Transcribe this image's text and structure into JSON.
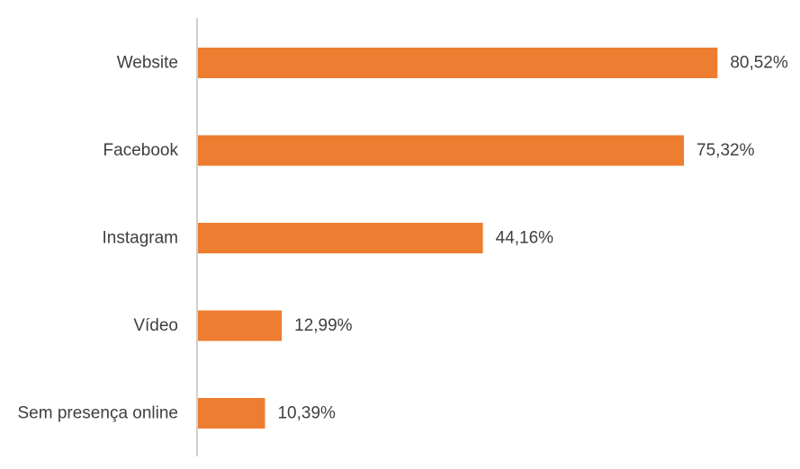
{
  "chart_data": {
    "type": "bar",
    "orientation": "horizontal",
    "categories": [
      "Website",
      "Facebook",
      "Instagram",
      "Vídeo",
      "Sem presença online"
    ],
    "values": [
      80.52,
      75.32,
      44.16,
      12.99,
      10.39
    ],
    "data_labels": [
      "80,52%",
      "75,32%",
      "44,16%",
      "12,99%",
      "10,39%"
    ],
    "xlim": [
      0,
      100
    ],
    "title": "",
    "xlabel": "",
    "ylabel": "",
    "grid": false,
    "legend": "none",
    "bar_color": "#ED7D31",
    "axis_color": "#BFBFBF",
    "text_color": "#3F3F3F"
  }
}
